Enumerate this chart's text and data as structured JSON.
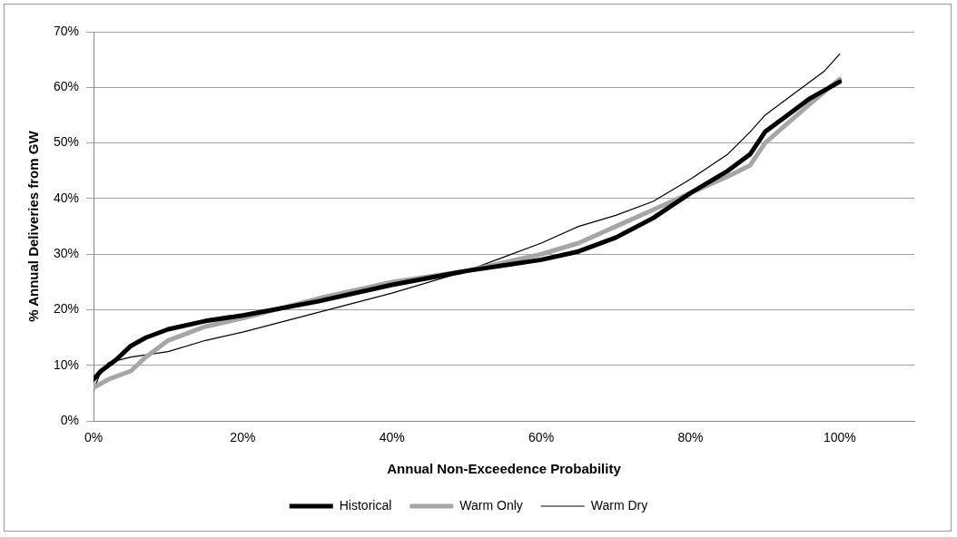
{
  "chart_data": {
    "type": "line",
    "xlabel": "Annual Non-Exceedence Probability",
    "ylabel": "% Annual Deliveries from GW",
    "xlim": [
      0,
      110
    ],
    "ylim": [
      0,
      70
    ],
    "xticks": [
      {
        "value": 0,
        "label": "0%"
      },
      {
        "value": 20,
        "label": "20%"
      },
      {
        "value": 40,
        "label": "40%"
      },
      {
        "value": 60,
        "label": "60%"
      },
      {
        "value": 80,
        "label": "80%"
      },
      {
        "value": 100,
        "label": "100%"
      }
    ],
    "yticks": [
      {
        "value": 0,
        "label": "0%"
      },
      {
        "value": 10,
        "label": "10%"
      },
      {
        "value": 20,
        "label": "20%"
      },
      {
        "value": 30,
        "label": "30%"
      },
      {
        "value": 40,
        "label": "40%"
      },
      {
        "value": 50,
        "label": "50%"
      },
      {
        "value": 60,
        "label": "60%"
      },
      {
        "value": 70,
        "label": "70%"
      }
    ],
    "grid": "y",
    "legend": "bottom",
    "marker": "none",
    "line_style": "solid",
    "series": [
      {
        "name": "Historical",
        "color": "#000000",
        "x": [
          0,
          1,
          3,
          5,
          7,
          10,
          15,
          20,
          30,
          40,
          50,
          55,
          60,
          65,
          70,
          75,
          80,
          85,
          88,
          90,
          93,
          96,
          100
        ],
        "values": [
          7.5,
          9,
          11,
          13.5,
          15,
          16.5,
          18,
          19,
          21.5,
          24.5,
          27,
          28,
          29,
          30.5,
          33,
          36.5,
          41,
          45,
          48,
          52,
          55,
          58,
          61
        ]
      },
      {
        "name": "Warm Only",
        "color": "#a6a6a6",
        "x": [
          0,
          2,
          5,
          7,
          10,
          15,
          20,
          30,
          40,
          50,
          60,
          65,
          70,
          75,
          80,
          85,
          88,
          90,
          93,
          96,
          100
        ],
        "values": [
          6,
          7.5,
          9,
          11.5,
          14.5,
          17,
          18.5,
          22,
          25,
          27,
          30,
          32,
          35,
          38,
          41,
          44,
          46,
          50,
          53.5,
          57,
          61.5
        ]
      },
      {
        "name": "Warm Dry",
        "color": "#000000",
        "x": [
          0,
          1,
          2,
          5,
          10,
          15,
          20,
          30,
          40,
          50,
          55,
          60,
          65,
          70,
          75,
          80,
          85,
          88,
          90,
          93,
          96,
          98,
          100
        ],
        "values": [
          5.5,
          9,
          10.5,
          11.5,
          12.5,
          14.5,
          16,
          19.5,
          23,
          27,
          29.5,
          32,
          35,
          37,
          39.5,
          43.5,
          48,
          52,
          55,
          58,
          61,
          63,
          66
        ]
      }
    ]
  }
}
